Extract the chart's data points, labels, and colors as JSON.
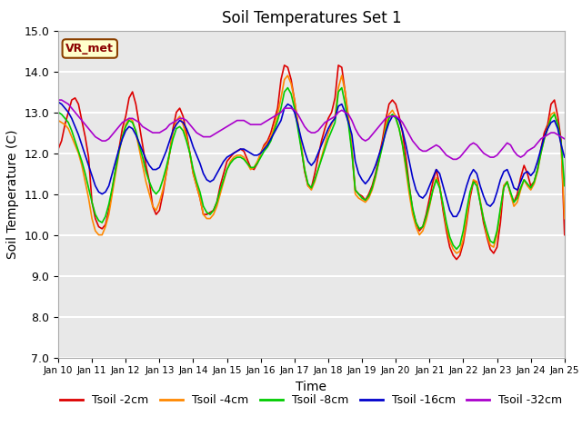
{
  "title": "Soil Temperatures Set 1",
  "xlabel": "Time",
  "ylabel": "Soil Temperature (C)",
  "annotation": "VR_met",
  "ylim": [
    7.0,
    15.0
  ],
  "yticks": [
    7.0,
    8.0,
    9.0,
    10.0,
    11.0,
    12.0,
    13.0,
    14.0,
    15.0
  ],
  "xlim": [
    0,
    15
  ],
  "xtick_labels": [
    "Jan 10",
    "Jan 11",
    "Jan 12",
    "Jan 13",
    "Jan 14",
    "Jan 15",
    "Jan 16",
    "Jan 17",
    "Jan 18",
    "Jan 19",
    "Jan 20",
    "Jan 21",
    "Jan 22",
    "Jan 23",
    "Jan 24",
    "Jan 25"
  ],
  "colors": {
    "Tsoil -2cm": "#dd0000",
    "Tsoil -4cm": "#ff8800",
    "Tsoil -8cm": "#00cc00",
    "Tsoil -16cm": "#0000cc",
    "Tsoil -32cm": "#aa00cc"
  },
  "background_color": "#e8e8e8",
  "Tsoil_2cm": [
    12.1,
    12.3,
    12.7,
    13.0,
    13.3,
    13.35,
    13.2,
    12.8,
    12.4,
    11.9,
    10.8,
    10.4,
    10.2,
    10.15,
    10.25,
    10.6,
    11.1,
    11.6,
    12.1,
    12.6,
    12.9,
    13.35,
    13.5,
    13.2,
    12.7,
    12.2,
    11.7,
    11.3,
    10.7,
    10.5,
    10.6,
    11.0,
    11.5,
    12.0,
    12.6,
    13.0,
    13.1,
    12.9,
    12.5,
    12.0,
    11.5,
    11.2,
    10.9,
    10.5,
    10.5,
    10.55,
    10.6,
    10.8,
    11.2,
    11.5,
    11.8,
    11.9,
    12.0,
    12.05,
    12.1,
    12.05,
    11.85,
    11.65,
    11.6,
    11.75,
    12.0,
    12.2,
    12.3,
    12.5,
    12.8,
    13.1,
    13.8,
    14.15,
    14.1,
    13.8,
    13.3,
    12.7,
    12.15,
    11.55,
    11.2,
    11.15,
    11.5,
    11.9,
    12.3,
    12.6,
    12.85,
    13.0,
    13.35,
    14.15,
    14.1,
    13.5,
    12.8,
    12.1,
    11.1,
    11.0,
    10.95,
    10.85,
    11.0,
    11.2,
    11.5,
    11.9,
    12.3,
    12.8,
    13.2,
    13.3,
    13.2,
    12.9,
    12.5,
    11.9,
    11.2,
    10.6,
    10.3,
    10.1,
    10.2,
    10.5,
    10.9,
    11.3,
    11.6,
    11.2,
    10.6,
    10.1,
    9.7,
    9.5,
    9.4,
    9.5,
    9.8,
    10.3,
    10.9,
    11.3,
    11.3,
    10.8,
    10.3,
    9.95,
    9.65,
    9.55,
    9.7,
    10.3,
    11.2,
    11.3,
    11.0,
    10.8,
    11.0,
    11.4,
    11.7,
    11.5,
    11.2,
    11.3,
    11.6,
    12.1,
    12.5,
    12.7,
    13.2,
    13.3,
    12.9,
    12.3,
    10.0
  ],
  "Tsoil_4cm": [
    12.8,
    12.75,
    12.7,
    12.6,
    12.4,
    12.2,
    12.0,
    11.7,
    11.3,
    10.9,
    10.4,
    10.1,
    10.0,
    10.0,
    10.2,
    10.5,
    11.0,
    11.5,
    12.0,
    12.4,
    12.7,
    12.85,
    12.8,
    12.5,
    12.1,
    11.7,
    11.3,
    11.0,
    10.7,
    10.6,
    10.8,
    11.1,
    11.5,
    12.0,
    12.5,
    12.8,
    12.9,
    12.7,
    12.4,
    12.0,
    11.5,
    11.2,
    10.9,
    10.5,
    10.4,
    10.4,
    10.5,
    10.7,
    11.0,
    11.3,
    11.6,
    11.8,
    11.9,
    11.95,
    11.95,
    11.9,
    11.75,
    11.6,
    11.65,
    11.8,
    12.0,
    12.15,
    12.25,
    12.4,
    12.65,
    12.95,
    13.35,
    13.8,
    13.9,
    13.7,
    13.3,
    12.75,
    12.2,
    11.6,
    11.2,
    11.1,
    11.3,
    11.6,
    11.9,
    12.2,
    12.5,
    12.7,
    12.9,
    13.6,
    13.9,
    13.5,
    12.9,
    12.1,
    11.0,
    10.9,
    10.85,
    10.8,
    10.9,
    11.1,
    11.4,
    11.8,
    12.2,
    12.65,
    12.95,
    13.05,
    12.9,
    12.6,
    12.2,
    11.6,
    11.0,
    10.5,
    10.2,
    10.0,
    10.1,
    10.35,
    10.7,
    11.1,
    11.4,
    11.2,
    10.7,
    10.2,
    9.85,
    9.65,
    9.55,
    9.6,
    9.9,
    10.4,
    11.0,
    11.35,
    11.3,
    10.85,
    10.4,
    10.0,
    9.75,
    9.7,
    10.0,
    10.6,
    11.2,
    11.3,
    11.0,
    10.7,
    10.8,
    11.1,
    11.35,
    11.2,
    11.1,
    11.25,
    11.55,
    12.0,
    12.35,
    12.6,
    12.95,
    13.0,
    12.7,
    12.2,
    10.4
  ],
  "Tsoil_8cm": [
    13.0,
    12.95,
    12.85,
    12.75,
    12.55,
    12.3,
    12.05,
    11.8,
    11.5,
    11.15,
    10.8,
    10.5,
    10.35,
    10.3,
    10.45,
    10.75,
    11.15,
    11.6,
    12.05,
    12.4,
    12.65,
    12.8,
    12.75,
    12.55,
    12.2,
    11.9,
    11.55,
    11.3,
    11.1,
    11.0,
    11.1,
    11.35,
    11.65,
    12.0,
    12.35,
    12.6,
    12.65,
    12.55,
    12.3,
    12.0,
    11.6,
    11.3,
    11.05,
    10.7,
    10.55,
    10.5,
    10.6,
    10.8,
    11.1,
    11.35,
    11.6,
    11.75,
    11.85,
    11.9,
    11.9,
    11.85,
    11.75,
    11.65,
    11.65,
    11.75,
    11.9,
    12.05,
    12.15,
    12.3,
    12.55,
    12.8,
    13.1,
    13.5,
    13.6,
    13.45,
    13.1,
    12.6,
    12.1,
    11.6,
    11.25,
    11.15,
    11.35,
    11.6,
    11.85,
    12.1,
    12.35,
    12.55,
    12.75,
    13.5,
    13.6,
    13.2,
    12.7,
    12.0,
    11.1,
    11.0,
    10.9,
    10.85,
    10.95,
    11.15,
    11.45,
    11.8,
    12.15,
    12.55,
    12.85,
    12.95,
    12.85,
    12.6,
    12.2,
    11.7,
    11.15,
    10.65,
    10.3,
    10.15,
    10.2,
    10.45,
    10.75,
    11.1,
    11.35,
    11.15,
    10.75,
    10.3,
    9.95,
    9.75,
    9.65,
    9.75,
    10.1,
    10.6,
    11.05,
    11.3,
    11.2,
    10.8,
    10.4,
    10.1,
    9.85,
    9.8,
    10.1,
    10.65,
    11.15,
    11.3,
    11.05,
    10.8,
    10.9,
    11.15,
    11.35,
    11.25,
    11.15,
    11.3,
    11.6,
    12.0,
    12.35,
    12.6,
    12.85,
    12.95,
    12.7,
    12.25,
    11.2
  ],
  "Tsoil_16cm": [
    13.25,
    13.2,
    13.1,
    13.0,
    12.85,
    12.65,
    12.45,
    12.2,
    11.95,
    11.7,
    11.45,
    11.2,
    11.05,
    11.0,
    11.05,
    11.2,
    11.5,
    11.8,
    12.1,
    12.35,
    12.55,
    12.65,
    12.6,
    12.45,
    12.25,
    12.05,
    11.85,
    11.7,
    11.6,
    11.6,
    11.65,
    11.85,
    12.05,
    12.3,
    12.55,
    12.7,
    12.8,
    12.75,
    12.6,
    12.4,
    12.15,
    11.95,
    11.75,
    11.5,
    11.35,
    11.3,
    11.35,
    11.5,
    11.65,
    11.8,
    11.9,
    11.95,
    12.0,
    12.05,
    12.1,
    12.1,
    12.05,
    12.0,
    11.95,
    11.95,
    12.0,
    12.1,
    12.2,
    12.35,
    12.5,
    12.65,
    12.8,
    13.1,
    13.2,
    13.15,
    13.0,
    12.7,
    12.35,
    12.05,
    11.8,
    11.7,
    11.8,
    12.0,
    12.2,
    12.4,
    12.6,
    12.75,
    12.85,
    13.15,
    13.2,
    13.0,
    12.75,
    12.45,
    11.8,
    11.5,
    11.35,
    11.25,
    11.35,
    11.5,
    11.7,
    11.95,
    12.2,
    12.5,
    12.75,
    12.9,
    12.9,
    12.8,
    12.55,
    12.2,
    11.8,
    11.4,
    11.1,
    10.95,
    10.9,
    11.0,
    11.2,
    11.4,
    11.6,
    11.5,
    11.2,
    10.9,
    10.6,
    10.45,
    10.45,
    10.6,
    10.9,
    11.2,
    11.45,
    11.6,
    11.5,
    11.2,
    10.95,
    10.75,
    10.7,
    10.8,
    11.05,
    11.35,
    11.55,
    11.6,
    11.4,
    11.15,
    11.1,
    11.3,
    11.5,
    11.55,
    11.45,
    11.55,
    11.8,
    12.1,
    12.4,
    12.6,
    12.75,
    12.8,
    12.6,
    12.2,
    11.9
  ],
  "Tsoil_32cm": [
    13.3,
    13.3,
    13.25,
    13.2,
    13.1,
    13.0,
    12.9,
    12.8,
    12.7,
    12.6,
    12.5,
    12.4,
    12.35,
    12.3,
    12.3,
    12.35,
    12.45,
    12.55,
    12.65,
    12.75,
    12.8,
    12.85,
    12.85,
    12.8,
    12.75,
    12.65,
    12.6,
    12.55,
    12.5,
    12.5,
    12.5,
    12.55,
    12.6,
    12.7,
    12.75,
    12.8,
    12.85,
    12.85,
    12.8,
    12.7,
    12.6,
    12.5,
    12.45,
    12.4,
    12.4,
    12.4,
    12.45,
    12.5,
    12.55,
    12.6,
    12.65,
    12.7,
    12.75,
    12.8,
    12.8,
    12.8,
    12.75,
    12.7,
    12.7,
    12.7,
    12.7,
    12.75,
    12.8,
    12.85,
    12.9,
    12.95,
    13.0,
    13.1,
    13.1,
    13.1,
    13.05,
    12.95,
    12.8,
    12.65,
    12.55,
    12.5,
    12.5,
    12.55,
    12.65,
    12.75,
    12.8,
    12.85,
    12.9,
    13.0,
    13.05,
    13.0,
    12.95,
    12.8,
    12.6,
    12.45,
    12.35,
    12.3,
    12.35,
    12.45,
    12.55,
    12.65,
    12.75,
    12.85,
    12.9,
    12.9,
    12.9,
    12.85,
    12.75,
    12.6,
    12.45,
    12.3,
    12.2,
    12.1,
    12.05,
    12.05,
    12.1,
    12.15,
    12.2,
    12.15,
    12.05,
    11.95,
    11.9,
    11.85,
    11.85,
    11.9,
    12.0,
    12.1,
    12.2,
    12.25,
    12.2,
    12.1,
    12.0,
    11.95,
    11.9,
    11.9,
    11.95,
    12.05,
    12.15,
    12.25,
    12.2,
    12.05,
    11.95,
    11.9,
    11.95,
    12.05,
    12.1,
    12.15,
    12.25,
    12.35,
    12.4,
    12.45,
    12.5,
    12.5,
    12.45,
    12.4,
    12.35
  ]
}
